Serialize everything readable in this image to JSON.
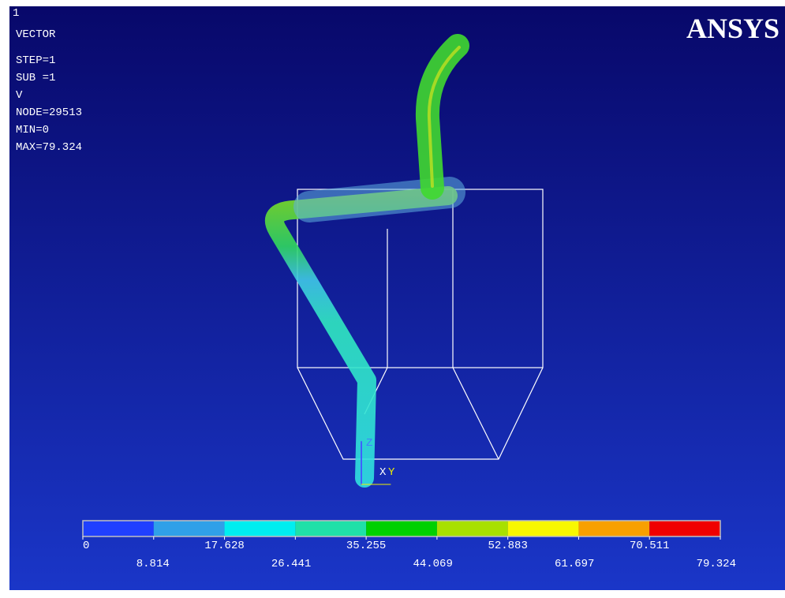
{
  "window": {
    "number": "1",
    "logo": "ANSYS"
  },
  "info": [
    "VECTOR",
    "STEP=1",
    "SUB =1",
    "V",
    "NODE=29513",
    "MIN=0",
    "MAX=79.324"
  ],
  "triad": [
    "X",
    "Y",
    "Z"
  ],
  "legend": {
    "colors": [
      "#2040ff",
      "#30a0e8",
      "#00eef0",
      "#20e0a8",
      "#00d000",
      "#a8e000",
      "#f8f800",
      "#f8a000",
      "#f00000"
    ],
    "labels": [
      "0",
      "8.814",
      "17.628",
      "26.441",
      "35.255",
      "44.069",
      "52.883",
      "61.697",
      "70.511",
      "79.324"
    ]
  }
}
